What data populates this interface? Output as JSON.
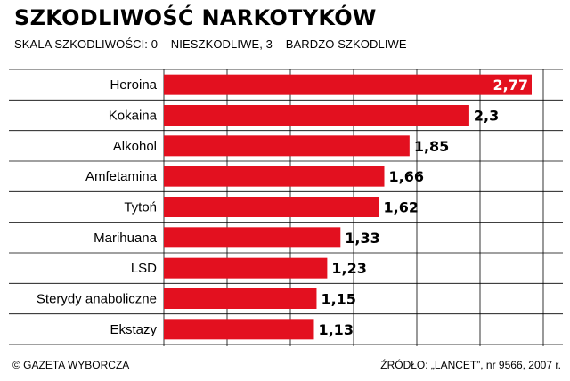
{
  "header": {
    "title": "SZKODLIWOŚĆ NARKOTYKÓW",
    "subtitle": "SKALA SZKODLIWOŚCI: 0 – NIESZKODLIWE, 3 – BARDZO SZKODLIWE"
  },
  "footer": {
    "copyright": "© GAZETA WYBORCZA",
    "source": "ŹRÓDŁO: „LANCET”, nr 9566, 2007 r."
  },
  "colors": {
    "bar": "#e3101f",
    "grid": "#000000",
    "panel_bg": "#ffffff"
  },
  "chart_data": {
    "type": "bar",
    "orientation": "horizontal",
    "title": "SZKODLIWOŚĆ NARKOTYKÓW",
    "subtitle": "SKALA SZKODLIWOŚCI: 0 – NIESZKODLIWE, 3 – BARDZO SZKODLIWE",
    "categories": [
      "Heroina",
      "Kokaina",
      "Alkohol",
      "Amfetamina",
      "Tytoń",
      "Marihuana",
      "LSD",
      "Sterydy anaboliczne",
      "Ekstazy"
    ],
    "values": [
      2.77,
      2.3,
      1.85,
      1.66,
      1.62,
      1.33,
      1.23,
      1.15,
      1.13
    ],
    "value_labels": [
      "2,77",
      "2,3",
      "1,85",
      "1,66",
      "1,62",
      "1,33",
      "1,23",
      "1,15",
      "1,13"
    ],
    "xlim": [
      0,
      3
    ],
    "grid": true
  }
}
